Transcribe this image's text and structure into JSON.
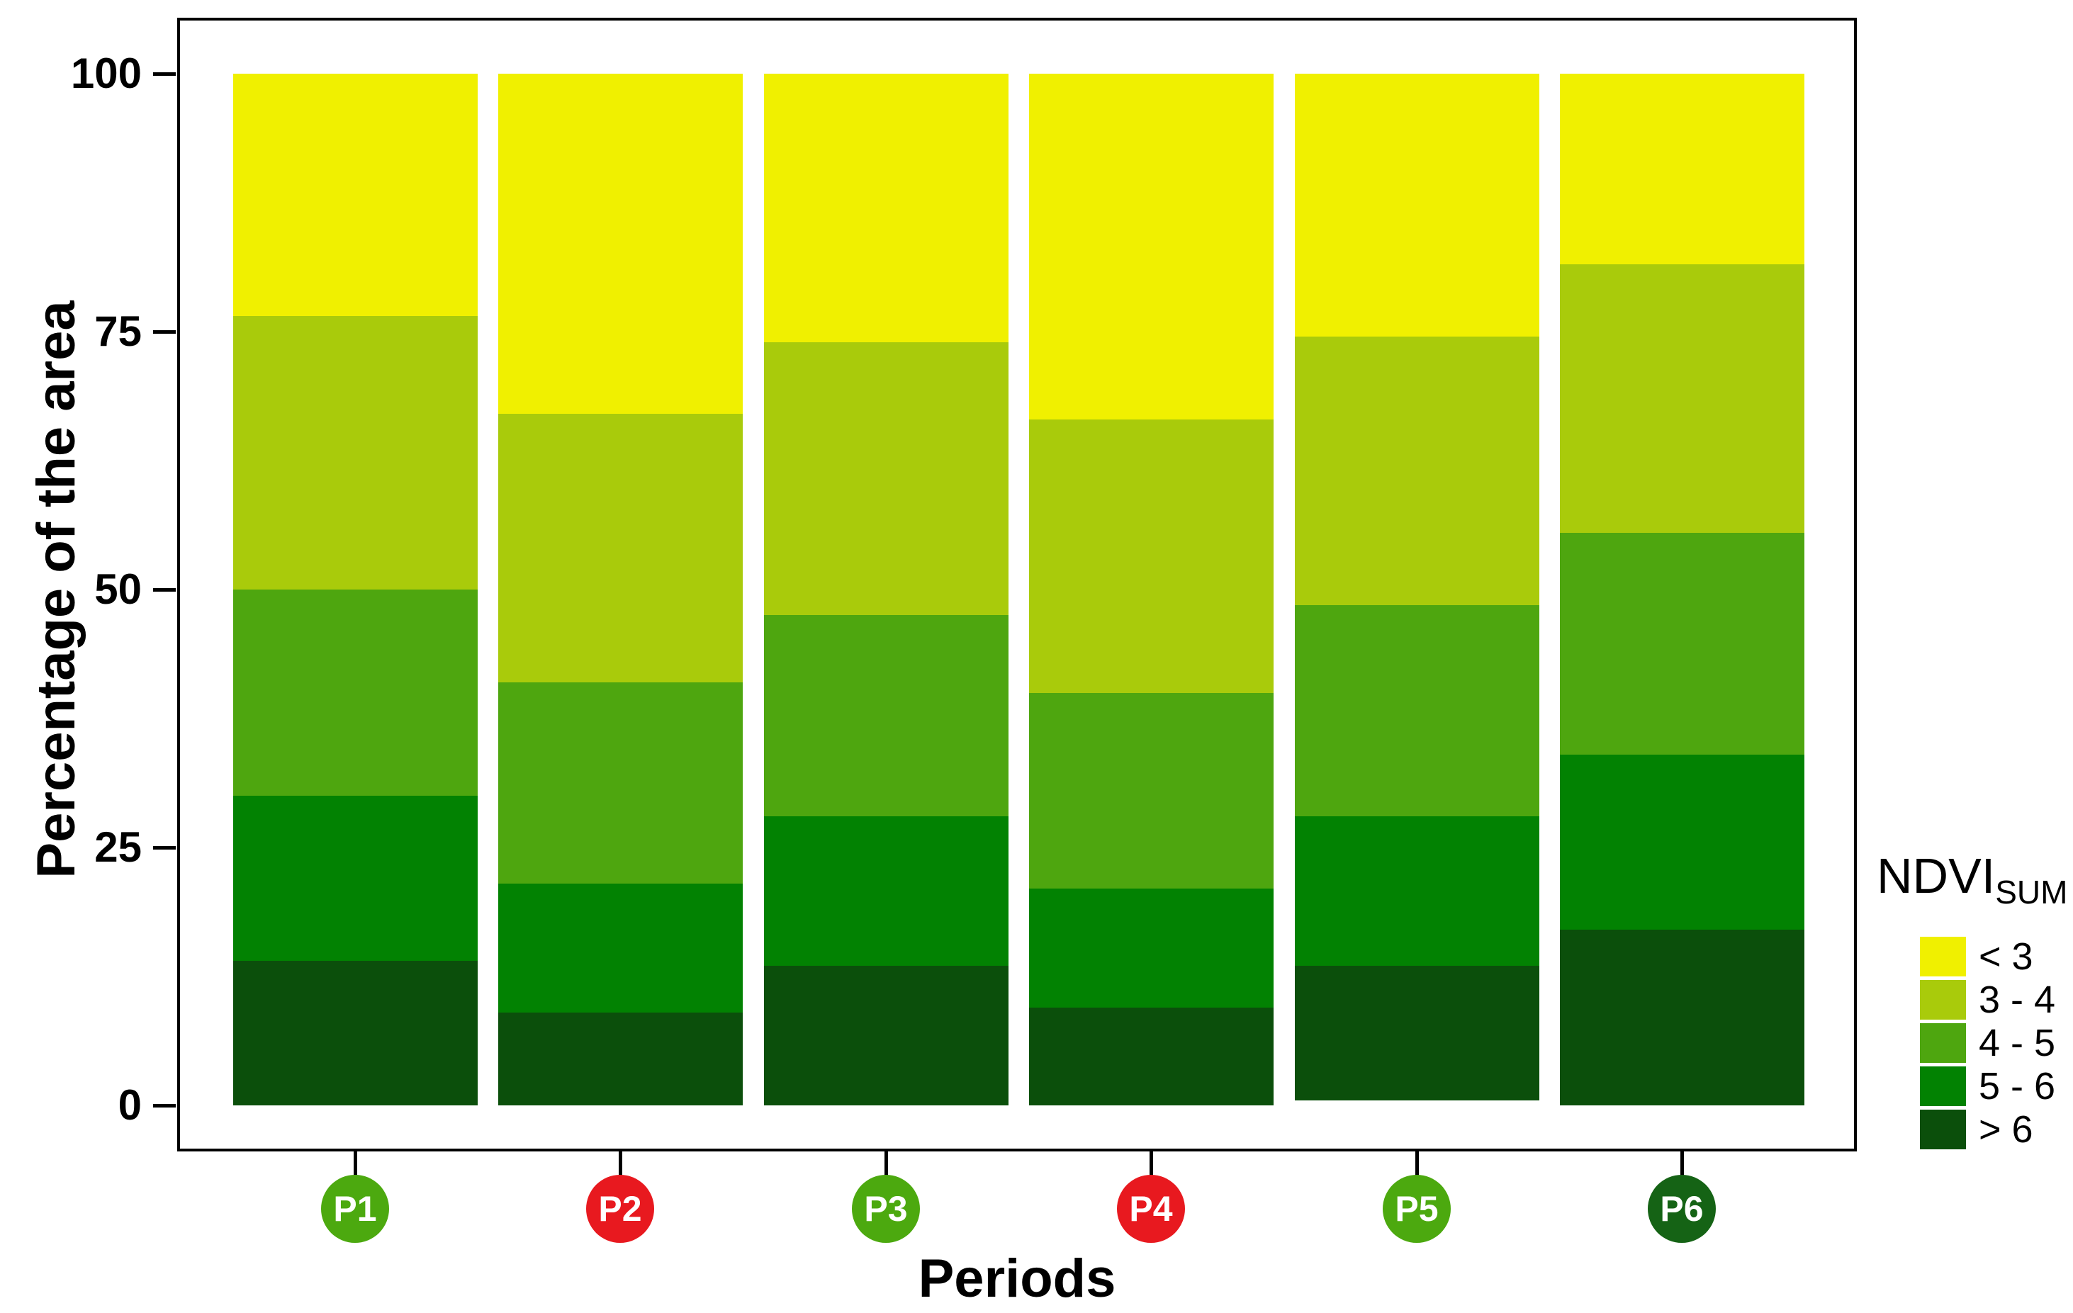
{
  "y_axis": {
    "title": "Percentage of the area",
    "tick_labels": [
      "0",
      "25",
      "50",
      "75",
      "100"
    ],
    "tick_values": [
      0,
      25,
      50,
      75,
      100
    ]
  },
  "x_axis": {
    "title": "Periods"
  },
  "legend": {
    "title": "NDVI",
    "title_subscript": "SUM",
    "items": [
      {
        "label": "< 3",
        "color": "#F0F000"
      },
      {
        "label": "3 - 4",
        "color": "#A9CB0B"
      },
      {
        "label": "4 - 5",
        "color": "#4EA60F"
      },
      {
        "label": "5 - 6",
        "color": "#028202"
      },
      {
        "label": "> 6",
        "color": "#0B4F0B"
      }
    ]
  },
  "badges": [
    {
      "label": "P1",
      "color": "#4CA90F"
    },
    {
      "label": "P2",
      "color": "#E8191F"
    },
    {
      "label": "P3",
      "color": "#4CA90F"
    },
    {
      "label": "P4",
      "color": "#E8191F"
    },
    {
      "label": "P5",
      "color": "#4CA90F"
    },
    {
      "label": "P6",
      "color": "#156315"
    }
  ],
  "chart_data": {
    "type": "bar",
    "stacked": true,
    "title": "",
    "xlabel": "Periods",
    "ylabel": "Percentage of the area",
    "ylim": [
      0,
      100
    ],
    "grid": false,
    "legend_position": "right",
    "categories": [
      "P1",
      "P2",
      "P3",
      "P4",
      "P5",
      "P6"
    ],
    "series": [
      {
        "name": "< 3",
        "color": "#F0F000",
        "values": [
          23.5,
          33.0,
          26.0,
          33.5,
          25.5,
          18.5
        ]
      },
      {
        "name": "3 - 4",
        "color": "#A9CB0B",
        "values": [
          26.5,
          26.0,
          26.5,
          26.5,
          26.0,
          26.0
        ]
      },
      {
        "name": "4 - 5",
        "color": "#4EA60F",
        "values": [
          20.0,
          19.5,
          19.5,
          19.0,
          20.5,
          21.5
        ]
      },
      {
        "name": "5 - 6",
        "color": "#028202",
        "values": [
          16.0,
          12.5,
          14.5,
          11.5,
          14.5,
          17.0
        ]
      },
      {
        "name": "> 6",
        "color": "#0B4F0B",
        "values": [
          14.0,
          9.0,
          13.5,
          9.5,
          13.0,
          17.0
        ]
      }
    ]
  }
}
